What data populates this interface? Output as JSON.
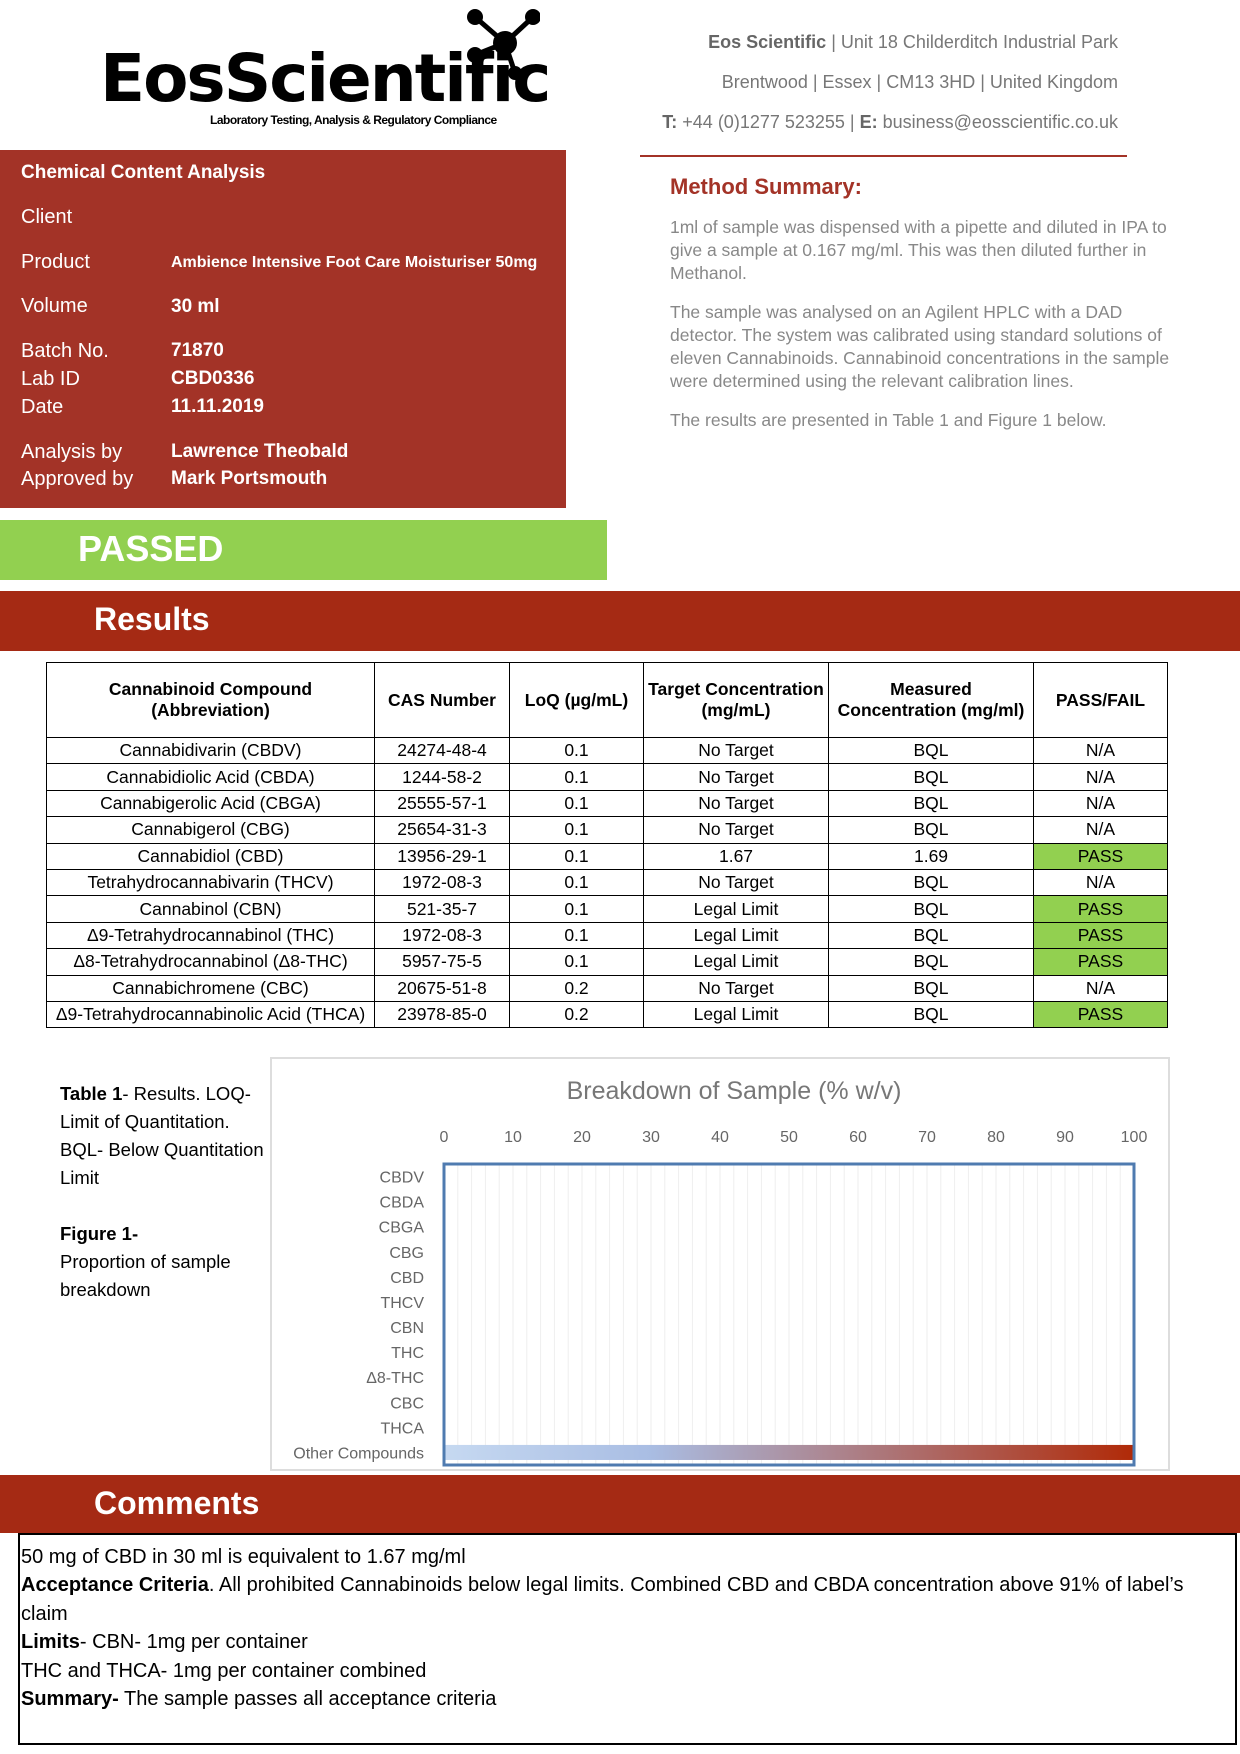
{
  "logo": {
    "name": "EosScientific",
    "tagline": "Laboratory Testing, Analysis & Regulatory Compliance"
  },
  "address": {
    "line1_bold": "Eos Scientific",
    "line1": " | Unit 18 Childerditch Industrial Park",
    "line2": "Brentwood | Essex | CM13 3HD | United Kingdom",
    "phone_label": "T:",
    "phone": " +44 (0)1277 523255 | ",
    "email_label": "E:",
    "email": " business@eosscientific.co.uk"
  },
  "info": {
    "title": "Chemical Content Analysis",
    "client_label": "Client",
    "product_label": "Product",
    "product": "Ambience Intensive Foot Care Moisturiser 50mg",
    "volume_label": "Volume",
    "volume": "30 ml",
    "batch_label": "Batch No.",
    "batch": "71870",
    "labid_label": "Lab ID",
    "labid": "CBD0336",
    "date_label": "Date",
    "date": "11.11.2019",
    "analysis_label": "Analysis by",
    "analysis": "Lawrence Theobald",
    "approved_label": "Approved by",
    "approved": "Mark Portsmouth"
  },
  "method": {
    "title": "Method Summary:",
    "p1": "1ml of sample was dispensed with a pipette and diluted in IPA to give a sample at 0.167 mg/ml. This was then diluted further in Methanol.",
    "p2": "The sample was analysed on an Agilent HPLC with a DAD detector. The system was calibrated using standard solutions of eleven Cannabinoids. Cannabinoid concentrations in the sample were determined using the relevant calibration lines.",
    "p3": "The results are presented in Table 1 and Figure 1 below."
  },
  "status": "PASSED",
  "results_title": "Results",
  "table": {
    "headers": [
      "Cannabinoid Compound (Abbreviation)",
      "CAS Number",
      "LoQ (µg/mL)",
      "Target Concentration (mg/mL)",
      "Measured Concentration (mg/ml)",
      "PASS/FAIL"
    ],
    "rows": [
      [
        "Cannabidivarin (CBDV)",
        "24274-48-4",
        "0.1",
        "No Target",
        "BQL",
        "N/A"
      ],
      [
        "Cannabidiolic Acid (CBDA)",
        "1244-58-2",
        "0.1",
        "No Target",
        "BQL",
        "N/A"
      ],
      [
        "Cannabigerolic Acid (CBGA)",
        "25555-57-1",
        "0.1",
        "No Target",
        "BQL",
        "N/A"
      ],
      [
        "Cannabigerol (CBG)",
        "25654-31-3",
        "0.1",
        "No Target",
        "BQL",
        "N/A"
      ],
      [
        "Cannabidiol (CBD)",
        "13956-29-1",
        "0.1",
        "1.67",
        "1.69",
        "PASS"
      ],
      [
        "Tetrahydrocannabivarin (THCV)",
        "1972-08-3",
        "0.1",
        "No Target",
        "BQL",
        "N/A"
      ],
      [
        "Cannabinol (CBN)",
        "521-35-7",
        "0.1",
        "Legal Limit",
        "BQL",
        "PASS"
      ],
      [
        "Δ9-Tetrahydrocannabinol (THC)",
        "1972-08-3",
        "0.1",
        "Legal Limit",
        "BQL",
        "PASS"
      ],
      [
        "Δ8-Tetrahydrocannabinol (Δ8-THC)",
        "5957-75-5",
        "0.1",
        "Legal Limit",
        "BQL",
        "PASS"
      ],
      [
        "Cannabichromene (CBC)",
        "20675-51-8",
        "0.2",
        "No Target",
        "BQL",
        "N/A"
      ],
      [
        "Δ9-Tetrahydrocannabinolic Acid (THCA)",
        "23978-85-0",
        "0.2",
        "Legal Limit",
        "BQL",
        "PASS"
      ]
    ]
  },
  "caption": {
    "table_bold": "Table 1",
    "table_text": "- Results. LOQ- Limit of Quantitation. BQL- Below Quantitation Limit",
    "figure_bold": "Figure 1-",
    "figure_text": "Proportion of sample breakdown"
  },
  "chart_data": {
    "type": "bar",
    "orientation": "horizontal",
    "title": "Breakdown of Sample (% w/v)",
    "categories": [
      "CBDV",
      "CBDA",
      "CBGA",
      "CBG",
      "CBD",
      "THCV",
      "CBN",
      "THC",
      "Δ8-THC",
      "CBC",
      "THCA",
      "Other Compounds"
    ],
    "values": [
      0,
      0,
      0,
      0,
      0.17,
      0,
      0,
      0,
      0,
      0,
      0,
      99.83
    ],
    "xlim": [
      0,
      100
    ],
    "xticks": [
      0,
      10,
      20,
      30,
      40,
      50,
      60,
      70,
      80,
      90,
      100
    ],
    "x_axis_position": "top",
    "grid": true,
    "colors": {
      "gradient_start": "#c6d9f1",
      "gradient_end": "#b02a08",
      "frame": "#4f7bb0"
    }
  },
  "comments_title": "Comments",
  "comments": {
    "l1": "50 mg of CBD in 30 ml is equivalent to 1.67 mg/ml",
    "l2_bold": "Acceptance Criteria",
    "l2": ". All prohibited Cannabinoids below legal limits. Combined CBD and CBDA concentration above 91% of label’s claim",
    "l3_bold": "Limits",
    "l3": "- CBN- 1mg per container",
    "l4": "THC and THCA- 1mg per container combined",
    "l5_bold": "Summary-",
    "l5": " The sample passes all acceptance criteria"
  },
  "colors": {
    "brand_red": "#a33327",
    "pass_green": "#92d050"
  }
}
